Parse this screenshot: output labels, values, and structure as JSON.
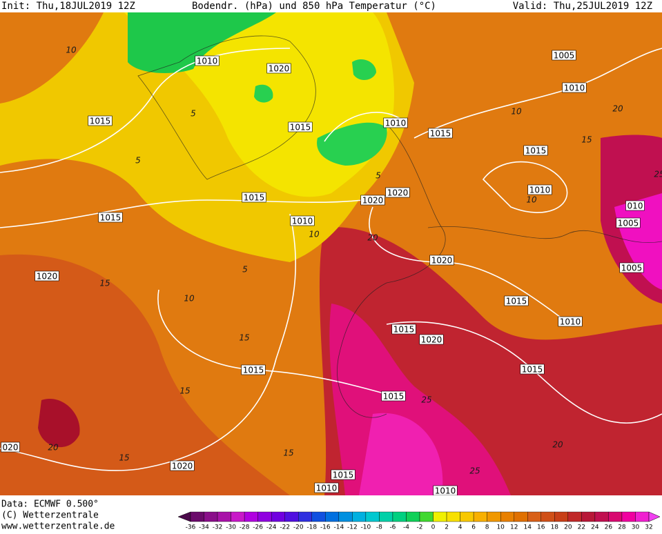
{
  "header": {
    "init": "Init: Thu,18JUL2019 12Z",
    "title": "Bodendr. (hPa) und 850 hPa Temperatur (°C)",
    "valid": "Valid: Thu,25JUL2019 12Z"
  },
  "footer": {
    "data": "Data: ECMWF  0.500°",
    "copyright": "(C) Wetterzentrale",
    "url": "www.wetterzentrale.de"
  },
  "isobar_labels": [
    "1010",
    "1020",
    "1015",
    "1015",
    "1010",
    "1015",
    "1005",
    "1010",
    "1015",
    "1010",
    "1020",
    "1020",
    "1015",
    "1010",
    "1015",
    "010",
    "1005",
    "1005",
    "1020",
    "1020",
    "1015",
    "1010",
    "1015",
    "1020",
    "1015",
    "1015",
    "1015",
    "1020",
    "020",
    "1015",
    "1010",
    "1010"
  ],
  "temperature_labels": [
    "10",
    "5",
    "5",
    "10",
    "10",
    "20",
    "25",
    "15",
    "5",
    "10",
    "5",
    "10",
    "15",
    "20",
    "15",
    "15",
    "15",
    "20",
    "15",
    "20",
    "25",
    "25"
  ],
  "colorbar": {
    "ticks": [
      -36,
      -34,
      -32,
      -30,
      -28,
      -26,
      -24,
      -22,
      -20,
      -18,
      -16,
      -14,
      -12,
      -10,
      -8,
      -6,
      -4,
      -2,
      0,
      2,
      4,
      6,
      8,
      10,
      12,
      14,
      16,
      18,
      20,
      22,
      24,
      26,
      28,
      30,
      32
    ],
    "colors": [
      "#4b0a4b",
      "#6a0a6a",
      "#8a0e8a",
      "#a812a8",
      "#c818c8",
      "#b000e0",
      "#9000e0",
      "#7000e0",
      "#5010e0",
      "#3030e0",
      "#1050e0",
      "#0070e0",
      "#0090e0",
      "#00b0e0",
      "#00c8d0",
      "#00d0a8",
      "#00d080",
      "#10d058",
      "#40d830",
      "#f0f000",
      "#f8e000",
      "#f8c800",
      "#f8b000",
      "#f09800",
      "#e88000",
      "#e07000",
      "#d86018",
      "#d05018",
      "#c84018",
      "#c02828",
      "#b81838",
      "#c01050",
      "#d80870",
      "#f000a0",
      "#f020d0",
      "#f040f0"
    ]
  }
}
